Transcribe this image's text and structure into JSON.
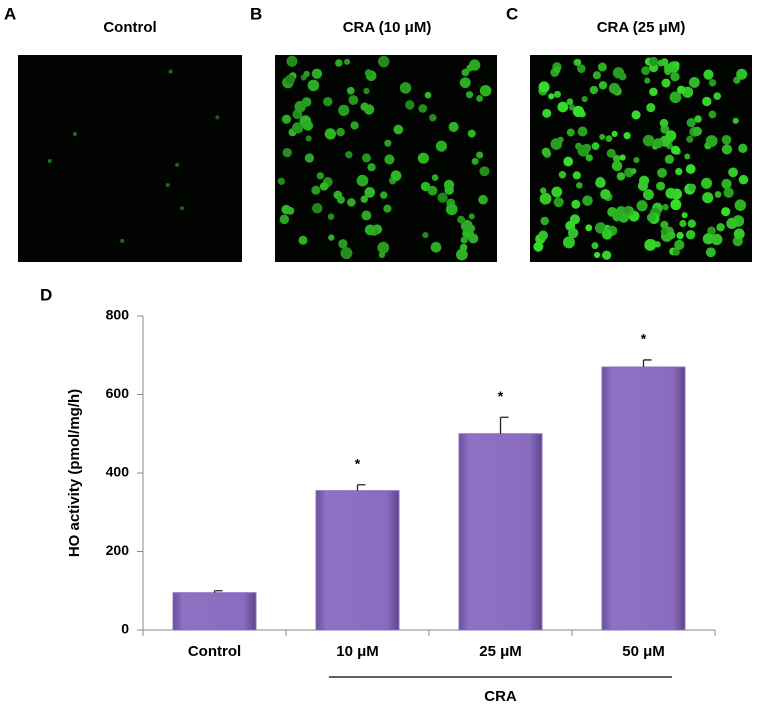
{
  "panels": [
    {
      "letter": "A",
      "title": "Control"
    },
    {
      "letter": "B",
      "title": "CRA (10 μM)"
    },
    {
      "letter": "C",
      "title": "CRA (25 μM)"
    }
  ],
  "chart_data": {
    "type": "bar",
    "panel_letter": "D",
    "y_label": "HO activity (pmol/mg/h)",
    "categories": [
      "Control",
      "10 μM",
      "25 μM",
      "50 μM"
    ],
    "values": [
      95,
      355,
      500,
      670
    ],
    "errors": [
      5,
      15,
      42,
      18
    ],
    "significance": [
      null,
      "*",
      "*",
      "*"
    ],
    "group_label": "CRA",
    "color": "#8a6bbf",
    "ylim": [
      0,
      800
    ],
    "yticks": [
      0,
      200,
      400,
      600,
      800
    ]
  }
}
